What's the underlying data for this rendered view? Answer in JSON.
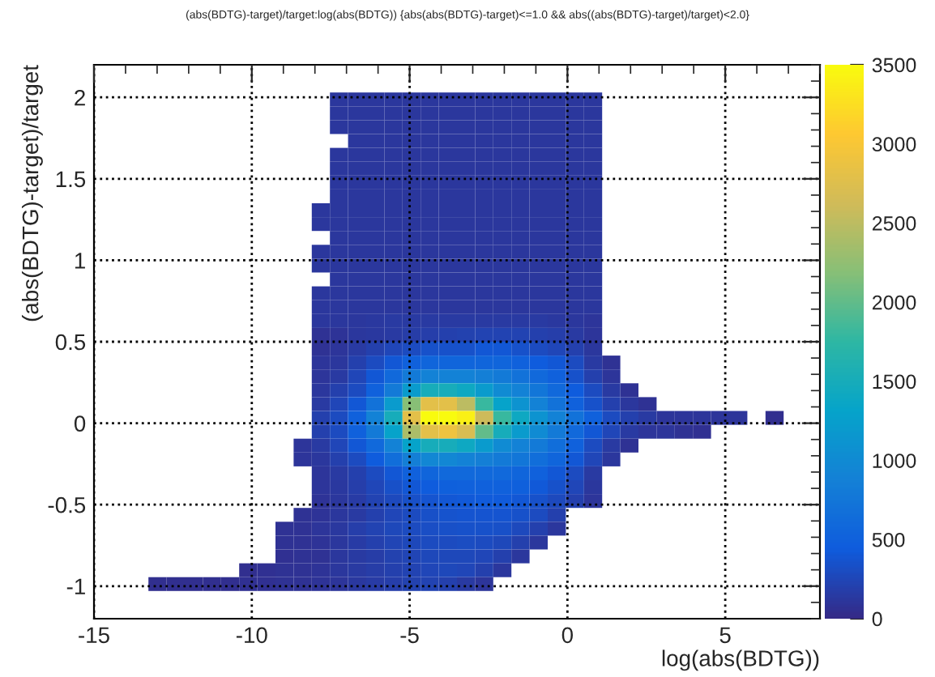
{
  "chart_data": {
    "type": "heatmap",
    "title": "(abs(BDTG)-target)/target:log(abs(BDTG)) {abs(abs(BDTG)-target)<=1.0 && abs((abs(BDTG)-target)/target)<2.0}",
    "xlabel": "log(abs(BDTG))",
    "ylabel": "(abs(BDTG)-target)/target",
    "xlim": [
      -15,
      8
    ],
    "xticks": [
      -15,
      -10,
      -5,
      0,
      5
    ],
    "ylim": [
      -1.2,
      2.2
    ],
    "yticks": [
      -1,
      -0.5,
      0,
      0.5,
      1,
      1.5,
      2
    ],
    "clim": [
      0,
      3500
    ],
    "cticks": [
      0,
      500,
      1000,
      1500,
      2000,
      2500,
      3000,
      3500
    ],
    "grid": true,
    "x": [
      -12.9875,
      -12.4125,
      -11.8375,
      -11.2625,
      -10.6875,
      -10.1125,
      -9.5375,
      -8.9625,
      -8.3875,
      -7.8125,
      -7.2375,
      -6.6625,
      -6.0875,
      -5.5125,
      -4.9375,
      -4.3625,
      -3.7875,
      -3.2125,
      -2.6375,
      -2.0625,
      -1.4875,
      -0.9125,
      -0.3375,
      0.2375,
      0.8125,
      1.3875,
      1.9625,
      2.5375,
      3.1125,
      3.6875,
      4.2625,
      4.8375,
      5.4125,
      5.9875,
      6.5625
    ],
    "y": [
      1.9875,
      1.9025,
      1.8175,
      1.7325,
      1.6475,
      1.5625,
      1.4775,
      1.3925,
      1.3075,
      1.2225,
      1.1375,
      1.0525,
      0.9675,
      0.8825,
      0.7975,
      0.7125,
      0.6275,
      0.5425,
      0.4575,
      0.3725,
      0.2875,
      0.2025,
      0.1175,
      0.0325,
      -0.0525,
      -0.1375,
      -0.2225,
      -0.3075,
      -0.3925,
      -0.4775,
      -0.5625,
      -0.6475,
      -0.7325,
      -0.8175,
      -0.9025,
      -0.9875
    ],
    "cells": [
      [
        null,
        null,
        null,
        null,
        null,
        null,
        null,
        null,
        null,
        null,
        120,
        120,
        120,
        120,
        120,
        120,
        120,
        120,
        120,
        120,
        120,
        120,
        120,
        120,
        120,
        null,
        null,
        null,
        null,
        null,
        null,
        null,
        null,
        null,
        null
      ],
      [
        null,
        null,
        null,
        null,
        null,
        null,
        null,
        null,
        null,
        null,
        120,
        120,
        120,
        120,
        120,
        120,
        120,
        120,
        120,
        120,
        120,
        120,
        120,
        120,
        120,
        null,
        null,
        null,
        null,
        null,
        null,
        null,
        null,
        null,
        null
      ],
      [
        null,
        null,
        null,
        null,
        null,
        null,
        null,
        null,
        null,
        null,
        120,
        120,
        120,
        120,
        120,
        120,
        120,
        120,
        120,
        120,
        120,
        120,
        120,
        120,
        120,
        null,
        null,
        null,
        null,
        null,
        null,
        null,
        null,
        null,
        null
      ],
      [
        null,
        null,
        null,
        null,
        null,
        null,
        null,
        null,
        null,
        null,
        null,
        120,
        120,
        120,
        120,
        120,
        120,
        120,
        120,
        120,
        120,
        120,
        120,
        120,
        120,
        null,
        null,
        null,
        null,
        null,
        null,
        null,
        null,
        null,
        null
      ],
      [
        null,
        null,
        null,
        null,
        null,
        null,
        null,
        null,
        null,
        null,
        120,
        120,
        120,
        120,
        120,
        120,
        120,
        120,
        120,
        120,
        120,
        120,
        120,
        120,
        120,
        null,
        null,
        null,
        null,
        null,
        null,
        null,
        null,
        null,
        null
      ],
      [
        null,
        null,
        null,
        null,
        null,
        null,
        null,
        null,
        null,
        null,
        120,
        120,
        120,
        120,
        120,
        120,
        120,
        120,
        120,
        120,
        120,
        120,
        120,
        120,
        120,
        null,
        null,
        null,
        null,
        null,
        null,
        null,
        null,
        null,
        null
      ],
      [
        null,
        null,
        null,
        null,
        null,
        null,
        null,
        null,
        null,
        null,
        120,
        120,
        120,
        120,
        120,
        120,
        120,
        120,
        120,
        120,
        120,
        120,
        120,
        120,
        120,
        null,
        null,
        null,
        null,
        null,
        null,
        null,
        null,
        null,
        null
      ],
      [
        null,
        null,
        null,
        null,
        null,
        null,
        null,
        null,
        null,
        null,
        120,
        120,
        120,
        120,
        120,
        120,
        120,
        120,
        120,
        120,
        120,
        120,
        120,
        120,
        120,
        null,
        null,
        null,
        null,
        null,
        null,
        null,
        null,
        null,
        null
      ],
      [
        null,
        null,
        null,
        null,
        null,
        null,
        null,
        null,
        null,
        120,
        120,
        120,
        120,
        120,
        120,
        120,
        120,
        120,
        120,
        120,
        120,
        120,
        120,
        120,
        120,
        null,
        null,
        null,
        null,
        null,
        null,
        null,
        null,
        null,
        null
      ],
      [
        null,
        null,
        null,
        null,
        null,
        null,
        null,
        null,
        null,
        120,
        120,
        120,
        120,
        120,
        120,
        120,
        120,
        120,
        120,
        120,
        120,
        120,
        120,
        120,
        120,
        null,
        null,
        null,
        null,
        null,
        null,
        null,
        null,
        null,
        null
      ],
      [
        null,
        null,
        null,
        null,
        null,
        null,
        null,
        null,
        null,
        null,
        120,
        120,
        120,
        120,
        120,
        120,
        120,
        120,
        120,
        120,
        120,
        120,
        120,
        120,
        120,
        null,
        null,
        null,
        null,
        null,
        null,
        null,
        null,
        null,
        null
      ],
      [
        null,
        null,
        null,
        null,
        null,
        null,
        null,
        null,
        null,
        120,
        120,
        120,
        120,
        120,
        120,
        120,
        120,
        120,
        120,
        120,
        120,
        120,
        120,
        120,
        120,
        null,
        null,
        null,
        null,
        null,
        null,
        null,
        null,
        null,
        null
      ],
      [
        null,
        null,
        null,
        null,
        null,
        null,
        null,
        null,
        null,
        120,
        120,
        120,
        120,
        120,
        120,
        120,
        120,
        120,
        120,
        120,
        120,
        120,
        120,
        120,
        120,
        null,
        null,
        null,
        null,
        null,
        null,
        null,
        null,
        null,
        null
      ],
      [
        null,
        null,
        null,
        null,
        null,
        null,
        null,
        null,
        null,
        null,
        120,
        120,
        120,
        120,
        120,
        120,
        120,
        120,
        120,
        120,
        120,
        120,
        120,
        120,
        120,
        null,
        null,
        null,
        null,
        null,
        null,
        null,
        null,
        null,
        null
      ],
      [
        null,
        null,
        null,
        null,
        null,
        null,
        null,
        null,
        null,
        120,
        120,
        120,
        120,
        120,
        120,
        120,
        120,
        120,
        120,
        120,
        120,
        120,
        120,
        120,
        120,
        null,
        null,
        null,
        null,
        null,
        null,
        null,
        null,
        null,
        null
      ],
      [
        null,
        null,
        null,
        null,
        null,
        null,
        null,
        null,
        null,
        120,
        120,
        120,
        120,
        120,
        120,
        120,
        120,
        120,
        120,
        120,
        120,
        120,
        120,
        120,
        120,
        null,
        null,
        null,
        null,
        null,
        null,
        null,
        null,
        null,
        null
      ],
      [
        null,
        null,
        null,
        null,
        null,
        null,
        null,
        null,
        null,
        110,
        110,
        120,
        130,
        150,
        150,
        150,
        150,
        150,
        150,
        150,
        150,
        140,
        130,
        120,
        100,
        null,
        null,
        null,
        null,
        null,
        null,
        null,
        null,
        null,
        null
      ],
      [
        null,
        null,
        null,
        null,
        null,
        null,
        null,
        null,
        null,
        80,
        90,
        110,
        130,
        150,
        170,
        190,
        200,
        210,
        220,
        230,
        220,
        200,
        180,
        150,
        100,
        null,
        null,
        null,
        null,
        null,
        null,
        null,
        null,
        null,
        null
      ],
      [
        null,
        null,
        null,
        null,
        null,
        null,
        null,
        null,
        null,
        80,
        100,
        150,
        200,
        250,
        300,
        350,
        350,
        350,
        400,
        400,
        350,
        300,
        250,
        200,
        120,
        null,
        null,
        null,
        null,
        null,
        null,
        null,
        null,
        null,
        null
      ],
      [
        null,
        null,
        null,
        null,
        null,
        null,
        null,
        null,
        null,
        100,
        120,
        200,
        300,
        400,
        500,
        550,
        550,
        550,
        550,
        550,
        500,
        450,
        400,
        300,
        150,
        80,
        null,
        null,
        null,
        null,
        null,
        null,
        null,
        null,
        null
      ],
      [
        null,
        null,
        null,
        null,
        null,
        null,
        null,
        null,
        null,
        100,
        150,
        250,
        400,
        600,
        800,
        900,
        900,
        900,
        850,
        800,
        700,
        600,
        500,
        350,
        200,
        100,
        null,
        null,
        null,
        null,
        null,
        null,
        null,
        null,
        null
      ],
      [
        null,
        null,
        null,
        null,
        null,
        null,
        null,
        null,
        null,
        120,
        200,
        300,
        500,
        800,
        1200,
        1500,
        1500,
        1400,
        1200,
        1000,
        900,
        750,
        600,
        450,
        300,
        150,
        80,
        null,
        null,
        null,
        null,
        null,
        null,
        null,
        null
      ],
      [
        null,
        null,
        null,
        null,
        null,
        null,
        null,
        null,
        null,
        150,
        250,
        400,
        700,
        1200,
        2200,
        2800,
        2800,
        2500,
        1800,
        1300,
        1100,
        900,
        700,
        500,
        350,
        200,
        120,
        80,
        null,
        null,
        null,
        null,
        null,
        null,
        null
      ],
      [
        null,
        null,
        null,
        null,
        null,
        null,
        null,
        null,
        null,
        200,
        300,
        500,
        900,
        1500,
        2800,
        3500,
        3500,
        3400,
        2600,
        1800,
        1400,
        1100,
        900,
        700,
        500,
        300,
        200,
        150,
        100,
        100,
        100,
        100,
        100,
        null,
        50
      ],
      [
        null,
        null,
        null,
        null,
        null,
        null,
        null,
        null,
        null,
        200,
        300,
        500,
        800,
        1300,
        2400,
        2800,
        2900,
        2700,
        2000,
        1500,
        1200,
        1000,
        800,
        600,
        400,
        250,
        150,
        100,
        100,
        80,
        60,
        null,
        null,
        null,
        null
      ],
      [
        null,
        null,
        null,
        null,
        null,
        null,
        null,
        null,
        100,
        150,
        250,
        400,
        600,
        900,
        1300,
        1500,
        1500,
        1400,
        1200,
        1000,
        900,
        800,
        650,
        500,
        300,
        150,
        80,
        null,
        null,
        null,
        null,
        null,
        null,
        null,
        null
      ],
      [
        null,
        null,
        null,
        null,
        null,
        null,
        null,
        null,
        100,
        120,
        200,
        300,
        450,
        650,
        850,
        950,
        950,
        900,
        850,
        800,
        750,
        650,
        550,
        400,
        250,
        120,
        null,
        null,
        null,
        null,
        null,
        null,
        null,
        null,
        null
      ],
      [
        null,
        null,
        null,
        null,
        null,
        null,
        null,
        null,
        null,
        100,
        150,
        200,
        300,
        400,
        500,
        550,
        600,
        600,
        600,
        600,
        550,
        500,
        400,
        300,
        150,
        null,
        null,
        null,
        null,
        null,
        null,
        null,
        null,
        null,
        null
      ],
      [
        null,
        null,
        null,
        null,
        null,
        null,
        null,
        null,
        null,
        100,
        130,
        180,
        250,
        330,
        400,
        450,
        480,
        500,
        500,
        500,
        480,
        420,
        350,
        250,
        120,
        null,
        null,
        null,
        null,
        null,
        null,
        null,
        null,
        null,
        null
      ],
      [
        null,
        null,
        null,
        null,
        null,
        null,
        null,
        null,
        null,
        90,
        120,
        160,
        220,
        280,
        340,
        380,
        400,
        420,
        430,
        430,
        400,
        350,
        280,
        200,
        100,
        null,
        null,
        null,
        null,
        null,
        null,
        null,
        null,
        null,
        null
      ],
      [
        null,
        null,
        null,
        null,
        null,
        null,
        null,
        null,
        80,
        90,
        110,
        150,
        200,
        250,
        300,
        340,
        360,
        380,
        380,
        380,
        350,
        300,
        200,
        null,
        null,
        null,
        null,
        null,
        null,
        null,
        null,
        null,
        null,
        null,
        null
      ],
      [
        null,
        null,
        null,
        null,
        null,
        null,
        null,
        70,
        80,
        100,
        130,
        180,
        220,
        270,
        300,
        320,
        340,
        350,
        350,
        330,
        280,
        200,
        120,
        null,
        null,
        null,
        null,
        null,
        null,
        null,
        null,
        null,
        null,
        null,
        null
      ],
      [
        null,
        null,
        null,
        null,
        null,
        null,
        null,
        70,
        80,
        90,
        120,
        160,
        200,
        240,
        270,
        290,
        300,
        310,
        300,
        270,
        200,
        120,
        null,
        null,
        null,
        null,
        null,
        null,
        null,
        null,
        null,
        null,
        null,
        null,
        null
      ],
      [
        null,
        null,
        null,
        null,
        null,
        null,
        null,
        60,
        70,
        80,
        110,
        140,
        170,
        210,
        240,
        260,
        270,
        270,
        250,
        200,
        120,
        null,
        null,
        null,
        null,
        null,
        null,
        null,
        null,
        null,
        null,
        null,
        null,
        null,
        null
      ],
      [
        null,
        null,
        null,
        null,
        null,
        50,
        60,
        70,
        80,
        90,
        110,
        140,
        170,
        200,
        230,
        250,
        260,
        250,
        200,
        120,
        null,
        null,
        null,
        null,
        null,
        null,
        null,
        null,
        null,
        null,
        null,
        null,
        null,
        null,
        null
      ],
      [
        50,
        50,
        50,
        50,
        50,
        60,
        60,
        70,
        80,
        90,
        100,
        130,
        160,
        190,
        210,
        220,
        200,
        150,
        100,
        null,
        null,
        null,
        null,
        null,
        null,
        null,
        null,
        null,
        null,
        null,
        null,
        null,
        null,
        null,
        null
      ]
    ]
  }
}
